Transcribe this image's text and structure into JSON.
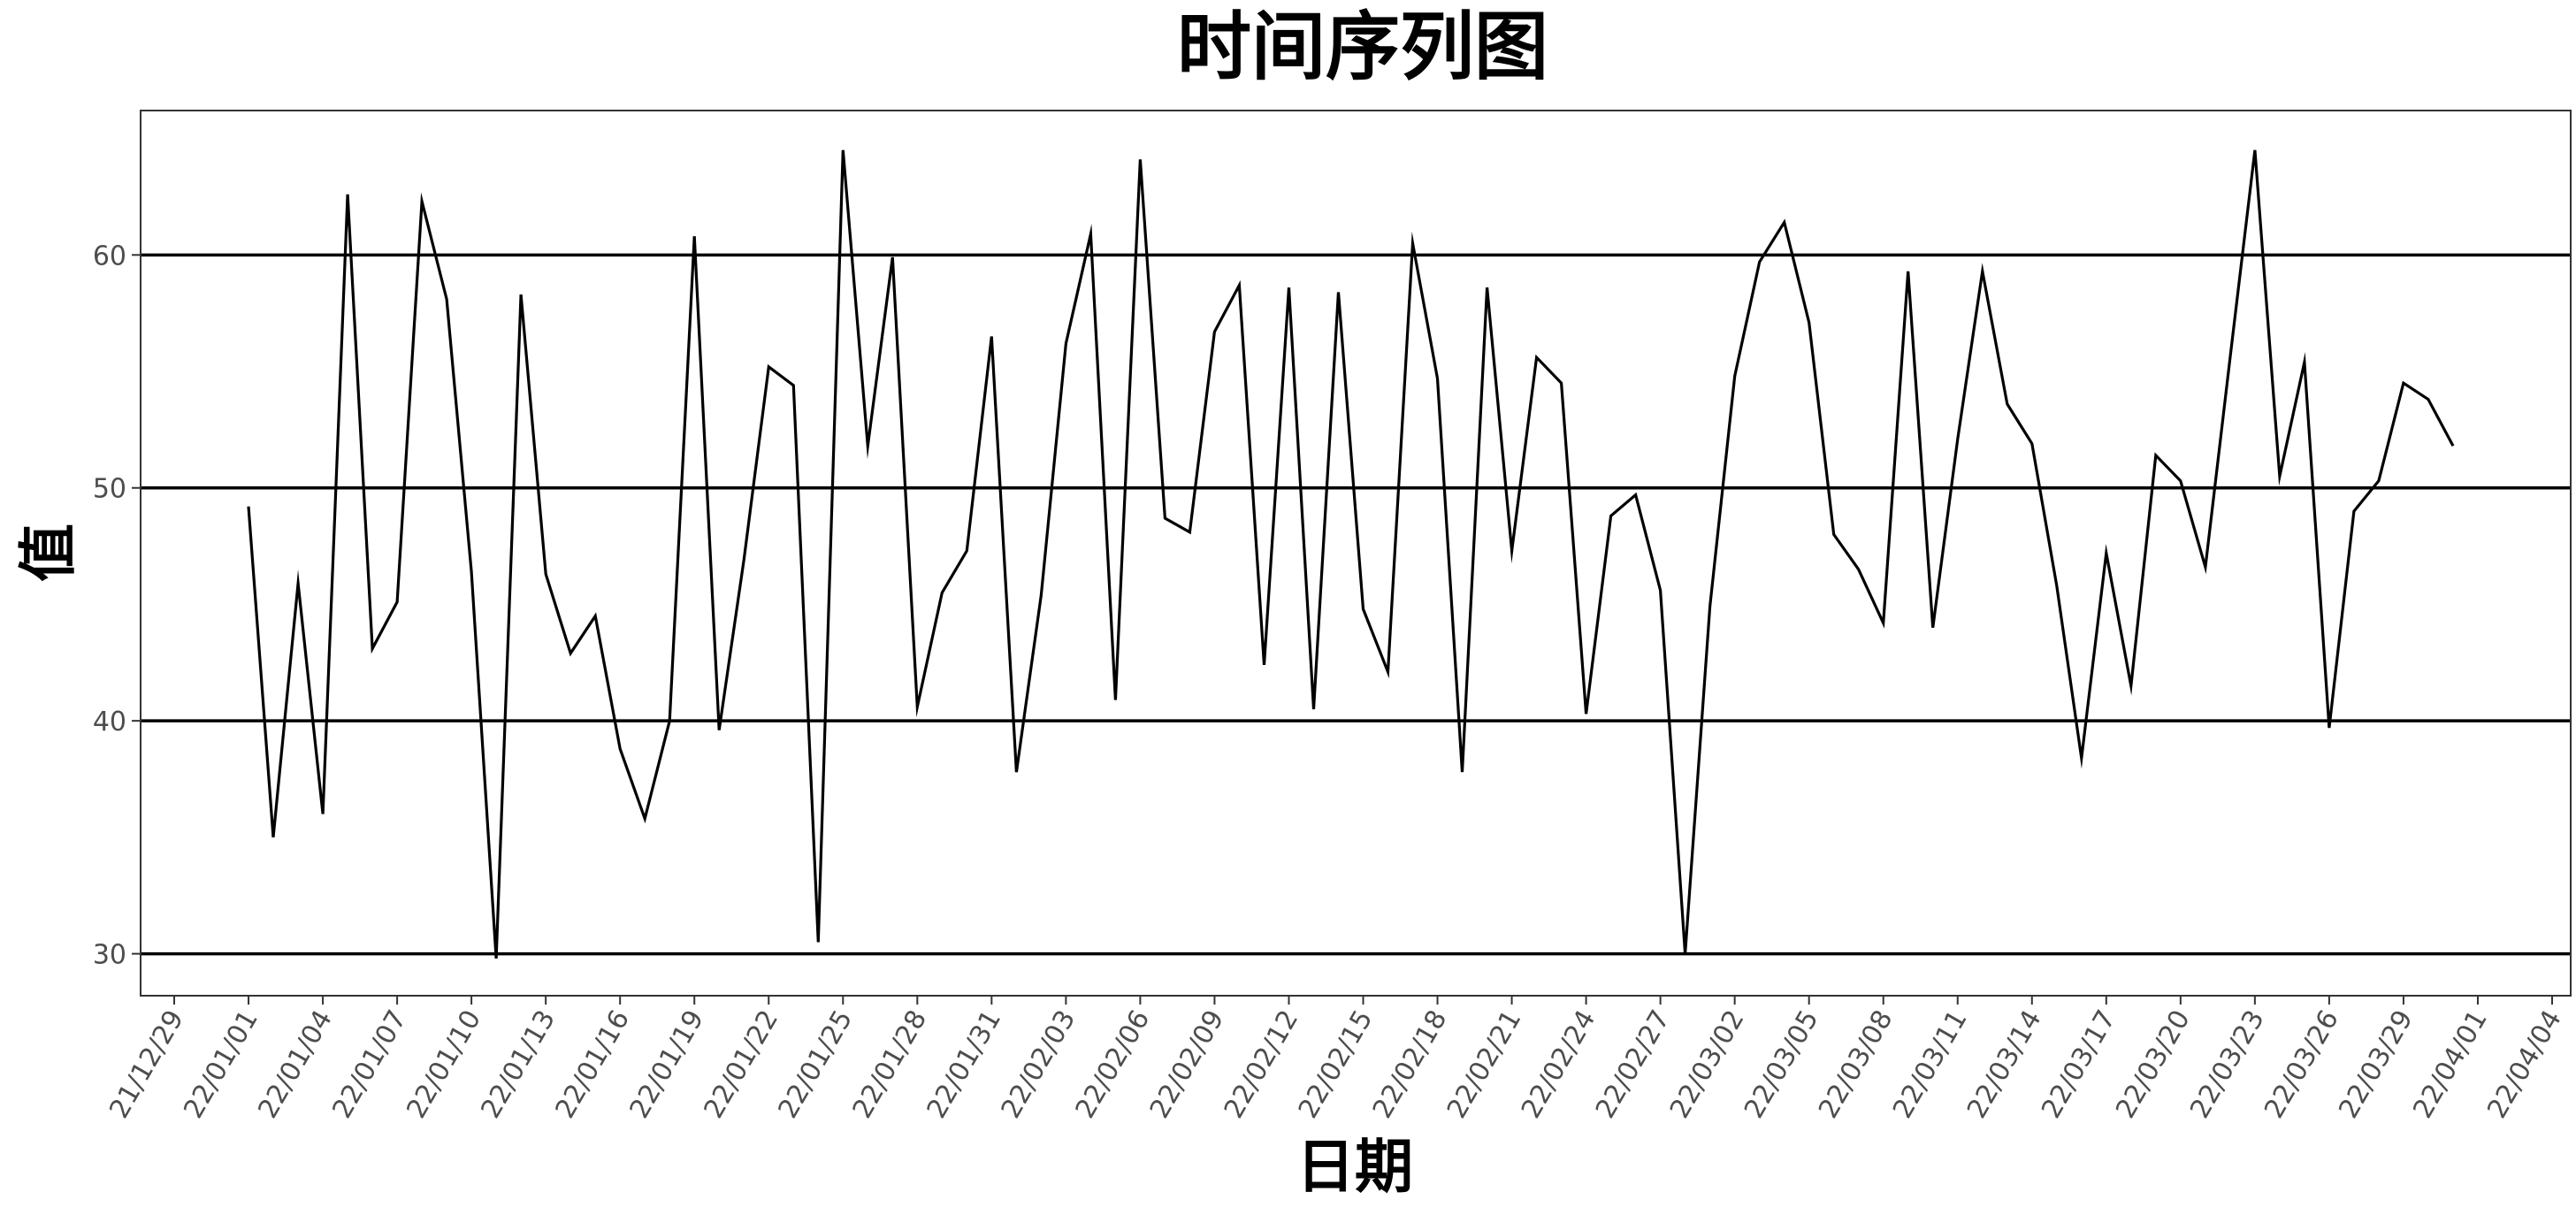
{
  "chart_data": {
    "type": "line",
    "title": "时间序列图",
    "xlabel": "日期",
    "ylabel": "值",
    "x_range": [
      "2021-12-29",
      "2022-04-04"
    ],
    "ylim": [
      28.2,
      66.2
    ],
    "x_ticks": [
      "21/12/29",
      "22/01/01",
      "22/01/04",
      "22/01/07",
      "22/01/10",
      "22/01/13",
      "22/01/16",
      "22/01/19",
      "22/01/22",
      "22/01/25",
      "22/01/28",
      "22/01/31",
      "22/02/03",
      "22/02/06",
      "22/02/09",
      "22/02/12",
      "22/02/15",
      "22/02/18",
      "22/02/21",
      "22/02/24",
      "22/02/27",
      "22/03/02",
      "22/03/05",
      "22/03/08",
      "22/03/11",
      "22/03/14",
      "22/03/17",
      "22/03/20",
      "22/03/23",
      "22/03/26",
      "22/03/29",
      "22/04/01",
      "22/04/04"
    ],
    "y_ticks": [
      30,
      40,
      50,
      60
    ],
    "grid": "horizontal major only",
    "line_color": "#000000",
    "series": [
      {
        "start_date": "2022-01-01",
        "x": [
          "2022-01-01",
          "2022-01-02",
          "2022-01-03",
          "2022-01-04",
          "2022-01-05",
          "2022-01-06",
          "2022-01-07",
          "2022-01-08",
          "2022-01-09",
          "2022-01-10",
          "2022-01-11",
          "2022-01-12",
          "2022-01-13",
          "2022-01-14",
          "2022-01-15",
          "2022-01-16",
          "2022-01-17",
          "2022-01-18",
          "2022-01-19",
          "2022-01-20",
          "2022-01-21",
          "2022-01-22",
          "2022-01-23",
          "2022-01-24",
          "2022-01-25",
          "2022-01-26",
          "2022-01-27",
          "2022-01-28",
          "2022-01-29",
          "2022-01-30",
          "2022-01-31",
          "2022-02-01",
          "2022-02-02",
          "2022-02-03",
          "2022-02-04",
          "2022-02-05",
          "2022-02-06",
          "2022-02-07",
          "2022-02-08",
          "2022-02-09",
          "2022-02-10",
          "2022-02-11",
          "2022-02-12",
          "2022-02-13",
          "2022-02-14",
          "2022-02-15",
          "2022-02-16",
          "2022-02-17",
          "2022-02-18",
          "2022-02-19",
          "2022-02-20",
          "2022-02-21",
          "2022-02-22",
          "2022-02-23",
          "2022-02-24",
          "2022-02-25",
          "2022-02-26",
          "2022-02-27",
          "2022-02-28",
          "2022-03-01",
          "2022-03-02",
          "2022-03-03",
          "2022-03-04",
          "2022-03-05",
          "2022-03-06",
          "2022-03-07",
          "2022-03-08",
          "2022-03-09",
          "2022-03-10",
          "2022-03-11",
          "2022-03-12",
          "2022-03-13",
          "2022-03-14",
          "2022-03-15",
          "2022-03-16",
          "2022-03-17",
          "2022-03-18",
          "2022-03-19",
          "2022-03-20",
          "2022-03-21",
          "2022-03-22",
          "2022-03-23",
          "2022-03-24",
          "2022-03-25",
          "2022-03-26",
          "2022-03-27",
          "2022-03-28",
          "2022-03-29",
          "2022-03-30",
          "2022-03-31"
        ],
        "values": [
          49.2,
          35.0,
          45.9,
          36.0,
          62.6,
          43.1,
          45.1,
          62.3,
          58.1,
          46.4,
          29.8,
          58.3,
          46.3,
          42.9,
          44.5,
          38.8,
          35.8,
          40.0,
          60.8,
          39.6,
          46.9,
          55.2,
          54.4,
          30.5,
          64.5,
          51.8,
          59.9,
          40.6,
          45.5,
          47.3,
          56.5,
          37.8,
          45.4,
          56.2,
          60.9,
          40.9,
          64.1,
          48.7,
          48.1,
          56.7,
          58.7,
          42.4,
          58.6,
          40.5,
          58.4,
          44.8,
          42.1,
          60.5,
          54.7,
          37.8,
          58.6,
          47.3,
          55.6,
          54.5,
          40.3,
          48.8,
          49.7,
          45.6,
          30.0,
          44.9,
          54.8,
          59.7,
          61.4,
          57.1,
          48.0,
          46.5,
          44.2,
          59.3,
          44.0,
          52.1,
          59.3,
          53.6,
          51.9,
          45.8,
          38.4,
          47.2,
          41.5,
          51.4,
          50.3,
          46.6,
          55.6,
          64.5,
          50.5,
          55.4,
          39.7,
          49.0,
          50.3,
          54.5,
          53.8,
          51.8
        ]
      }
    ]
  }
}
